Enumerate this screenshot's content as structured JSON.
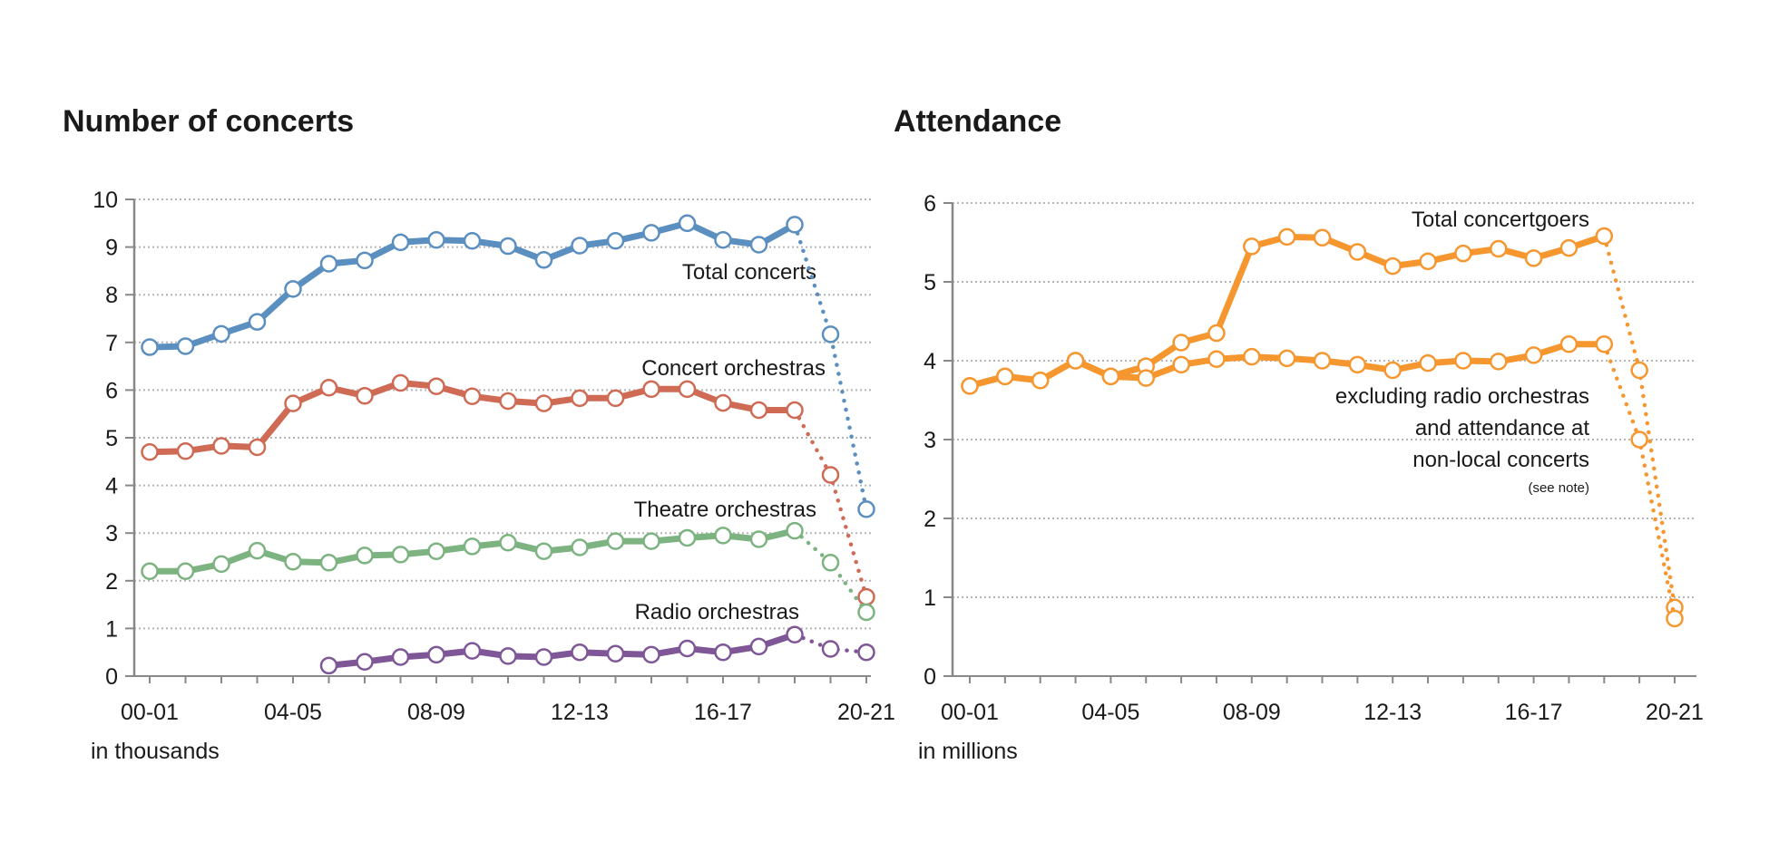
{
  "chart_data": [
    {
      "type": "line",
      "title": "Number of concerts",
      "unit_label": "in thousands",
      "categories": [
        "00-01",
        "01-02",
        "02-03",
        "03-04",
        "04-05",
        "05-06",
        "06-07",
        "07-08",
        "08-09",
        "09-10",
        "10-11",
        "11-12",
        "12-13",
        "13-14",
        "14-15",
        "15-16",
        "16-17",
        "17-18",
        "18-19",
        "19-20",
        "20-21"
      ],
      "x_tick_labels": [
        "00-01",
        "04-05",
        "08-09",
        "12-13",
        "16-17",
        "20-21"
      ],
      "ylim": [
        0,
        10
      ],
      "y_ticks": [
        0,
        1,
        2,
        3,
        4,
        5,
        6,
        7,
        8,
        9,
        10
      ],
      "grid": true,
      "dotted_from": "18-19",
      "series": [
        {
          "name": "Total concerts",
          "color": "#5b8fc0",
          "values": [
            6.9,
            6.92,
            7.18,
            7.43,
            8.12,
            8.65,
            8.72,
            9.1,
            9.15,
            9.13,
            9.02,
            8.73,
            9.03,
            9.13,
            9.3,
            9.5,
            9.15,
            9.05,
            9.47,
            7.17,
            3.5
          ]
        },
        {
          "name": "Concert orchestras",
          "color": "#cf6a55",
          "values": [
            4.7,
            4.72,
            4.83,
            4.8,
            5.72,
            6.05,
            5.88,
            6.15,
            6.08,
            5.87,
            5.77,
            5.72,
            5.83,
            5.83,
            6.02,
            6.02,
            5.73,
            5.58,
            5.58,
            4.22,
            1.66
          ]
        },
        {
          "name": "Theatre orchestras",
          "color": "#7cb381",
          "values": [
            2.2,
            2.2,
            2.35,
            2.63,
            2.4,
            2.38,
            2.53,
            2.55,
            2.62,
            2.72,
            2.8,
            2.62,
            2.7,
            2.83,
            2.83,
            2.9,
            2.95,
            2.87,
            3.05,
            2.38,
            1.34
          ]
        },
        {
          "name": "Radio orchestras",
          "color": "#7f5796",
          "values": [
            null,
            null,
            null,
            null,
            null,
            0.22,
            0.3,
            0.4,
            0.45,
            0.53,
            0.42,
            0.4,
            0.5,
            0.47,
            0.45,
            0.58,
            0.5,
            0.62,
            0.87,
            0.57,
            0.5
          ]
        }
      ]
    },
    {
      "type": "line",
      "title": "Attendance",
      "unit_label": "in millions",
      "categories": [
        "00-01",
        "01-02",
        "02-03",
        "03-04",
        "04-05",
        "05-06",
        "06-07",
        "07-08",
        "08-09",
        "09-10",
        "10-11",
        "11-12",
        "12-13",
        "13-14",
        "14-15",
        "15-16",
        "16-17",
        "17-18",
        "18-19",
        "19-20",
        "20-21"
      ],
      "x_tick_labels": [
        "00-01",
        "04-05",
        "08-09",
        "12-13",
        "16-17",
        "20-21"
      ],
      "ylim": [
        0,
        6
      ],
      "y_ticks": [
        0,
        1,
        2,
        3,
        4,
        5,
        6
      ],
      "grid": true,
      "dotted_from": "18-19",
      "series": [
        {
          "name": "Total concertgoers",
          "color": "#f6962f",
          "values": [
            3.68,
            3.8,
            3.75,
            4.0,
            3.8,
            3.93,
            4.23,
            4.35,
            5.45,
            5.57,
            5.56,
            5.38,
            5.2,
            5.26,
            5.36,
            5.42,
            5.3,
            5.43,
            5.58,
            3.88,
            0.87
          ]
        },
        {
          "name": "excluding radio orchestras and attendance at non-local concerts",
          "label_lines": [
            "excluding radio orchestras",
            "and attendance at",
            "non-local concerts"
          ],
          "note": "(see note)",
          "color": "#f6962f",
          "values": [
            3.68,
            3.8,
            3.75,
            4.0,
            3.8,
            3.78,
            3.95,
            4.02,
            4.05,
            4.03,
            4.0,
            3.95,
            3.88,
            3.97,
            4.0,
            3.99,
            4.07,
            4.21,
            4.21,
            3.0,
            0.73
          ]
        }
      ]
    }
  ]
}
